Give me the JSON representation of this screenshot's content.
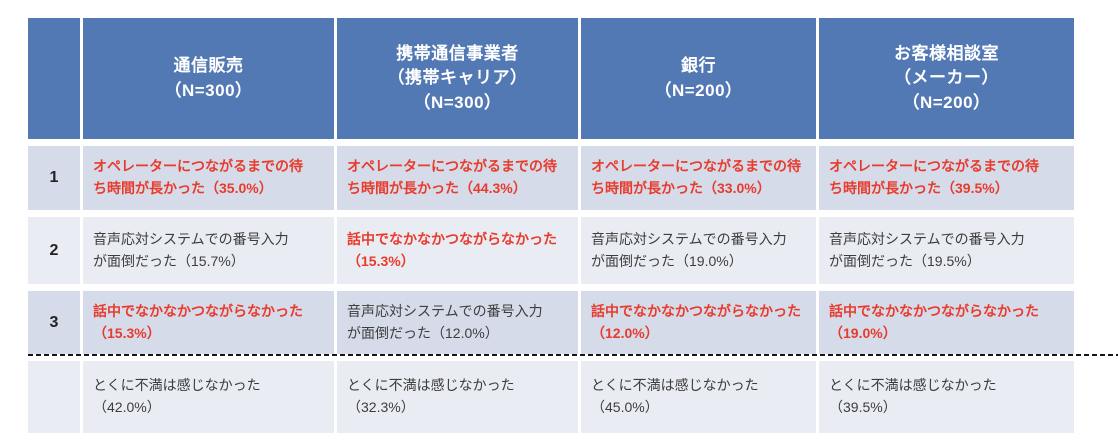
{
  "colors": {
    "header-bg": "#5379b5",
    "band-dark": "#d6dbe9",
    "band-light": "#eaecf3",
    "emphasis": "#e83b2c",
    "text-dark": "#3d3d3d",
    "dash": "#161616"
  },
  "chart_data": {
    "type": "table",
    "title": "",
    "columns": [
      {
        "label": "通信販売\n（N=300）",
        "name": "通信販売",
        "n": 300
      },
      {
        "label": "携帯通信事業者\n（携帯キャリア）\n（N=300）",
        "name": "携帯通信事業者（携帯キャリア）",
        "n": 300
      },
      {
        "label": "銀行\n（N=200）",
        "name": "銀行",
        "n": 200
      },
      {
        "label": "お客様相談室\n（メーカー）\n（N=200）",
        "name": "お客様相談室（メーカー）",
        "n": 200
      }
    ],
    "rows": [
      {
        "rank": "1",
        "cells": [
          {
            "text": "オペレーターにつながるまでの待\nち時間が長かった（35.0%）",
            "item": "オペレーターにつながるまでの待ち時間が長かった",
            "pct": 35.0,
            "emphasis": true
          },
          {
            "text": "オペレーターにつながるまでの待\nち時間が長かった（44.3%）",
            "item": "オペレーターにつながるまでの待ち時間が長かった",
            "pct": 44.3,
            "emphasis": true
          },
          {
            "text": "オペレーターにつながるまでの待\nち時間が長かった（33.0%）",
            "item": "オペレーターにつながるまでの待ち時間が長かった",
            "pct": 33.0,
            "emphasis": true
          },
          {
            "text": "オペレーターにつながるまでの待\nち時間が長かった（39.5%）",
            "item": "オペレーターにつながるまでの待ち時間が長かった",
            "pct": 39.5,
            "emphasis": true
          }
        ]
      },
      {
        "rank": "2",
        "cells": [
          {
            "text": "音声応対システムでの番号入力\nが面倒だった（15.7%）",
            "item": "音声応対システムでの番号入力が面倒だった",
            "pct": 15.7,
            "emphasis": false
          },
          {
            "text": "話中でなかなかつながらなかった\n（15.3%）",
            "item": "話中でなかなかつながらなかった",
            "pct": 15.3,
            "emphasis": true
          },
          {
            "text": "音声応対システムでの番号入力\nが面倒だった（19.0%）",
            "item": "音声応対システムでの番号入力が面倒だった",
            "pct": 19.0,
            "emphasis": false
          },
          {
            "text": "音声応対システムでの番号入力\nが面倒だった（19.5%）",
            "item": "音声応対システムでの番号入力が面倒だった",
            "pct": 19.5,
            "emphasis": false
          }
        ]
      },
      {
        "rank": "3",
        "cells": [
          {
            "text": "話中でなかなかつながらなかった\n（15.3%）",
            "item": "話中でなかなかつながらなかった",
            "pct": 15.3,
            "emphasis": true
          },
          {
            "text": "音声応対システムでの番号入力\nが面倒だった（12.0%）",
            "item": "音声応対システムでの番号入力が面倒だった",
            "pct": 12.0,
            "emphasis": false
          },
          {
            "text": "話中でなかなかつながらなかった\n（12.0%）",
            "item": "話中でなかなかつながらなかった",
            "pct": 12.0,
            "emphasis": true
          },
          {
            "text": "話中でなかなかつながらなかった\n（19.0%）",
            "item": "話中でなかなかつながらなかった",
            "pct": 19.0,
            "emphasis": true
          }
        ]
      },
      {
        "rank": "",
        "cells": [
          {
            "text": "とくに不満は感じなかった\n（42.0%）",
            "item": "とくに不満は感じなかった",
            "pct": 42.0,
            "emphasis": false
          },
          {
            "text": "とくに不満は感じなかった\n（32.3%）",
            "item": "とくに不満は感じなかった",
            "pct": 32.3,
            "emphasis": false
          },
          {
            "text": "とくに不満は感じなかった\n（45.0%）",
            "item": "とくに不満は感じなかった",
            "pct": 45.0,
            "emphasis": false
          },
          {
            "text": "とくに不満は感じなかった\n（39.5%）",
            "item": "とくに不満は感じなかった",
            "pct": 39.5,
            "emphasis": false
          }
        ]
      }
    ]
  }
}
